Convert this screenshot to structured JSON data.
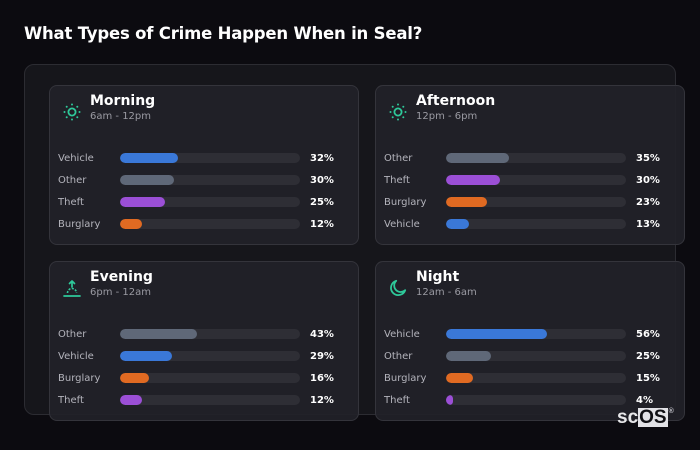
{
  "page": {
    "title": "What Types of Crime Happen When in Seal?"
  },
  "colors": {
    "accent_icon": "#2ec99a",
    "Vehicle": "#3a78d8",
    "Other": "#5f6878",
    "Theft": "#9b4fd6",
    "Burglary": "#e06a22",
    "track": "#2e2e35"
  },
  "cards": [
    {
      "id": "morning",
      "icon": "sun-icon",
      "title": "Morning",
      "subtitle": "6am - 12pm",
      "rows": [
        {
          "label": "Vehicle",
          "value": 32,
          "display": "32%"
        },
        {
          "label": "Other",
          "value": 30,
          "display": "30%"
        },
        {
          "label": "Theft",
          "value": 25,
          "display": "25%"
        },
        {
          "label": "Burglary",
          "value": 12,
          "display": "12%"
        }
      ]
    },
    {
      "id": "afternoon",
      "icon": "sun-icon",
      "title": "Afternoon",
      "subtitle": "12pm - 6pm",
      "rows": [
        {
          "label": "Other",
          "value": 35,
          "display": "35%"
        },
        {
          "label": "Theft",
          "value": 30,
          "display": "30%"
        },
        {
          "label": "Burglary",
          "value": 23,
          "display": "23%"
        },
        {
          "label": "Vehicle",
          "value": 13,
          "display": "13%"
        }
      ]
    },
    {
      "id": "evening",
      "icon": "sunset-icon",
      "title": "Evening",
      "subtitle": "6pm - 12am",
      "rows": [
        {
          "label": "Other",
          "value": 43,
          "display": "43%"
        },
        {
          "label": "Vehicle",
          "value": 29,
          "display": "29%"
        },
        {
          "label": "Burglary",
          "value": 16,
          "display": "16%"
        },
        {
          "label": "Theft",
          "value": 12,
          "display": "12%"
        }
      ]
    },
    {
      "id": "night",
      "icon": "moon-icon",
      "title": "Night",
      "subtitle": "12am - 6am",
      "rows": [
        {
          "label": "Vehicle",
          "value": 56,
          "display": "56%"
        },
        {
          "label": "Other",
          "value": 25,
          "display": "25%"
        },
        {
          "label": "Burglary",
          "value": 15,
          "display": "15%"
        },
        {
          "label": "Theft",
          "value": 4,
          "display": "4%"
        }
      ]
    }
  ],
  "watermark": {
    "prefix": "sc",
    "highlight": "OS",
    "reg": "®"
  }
}
